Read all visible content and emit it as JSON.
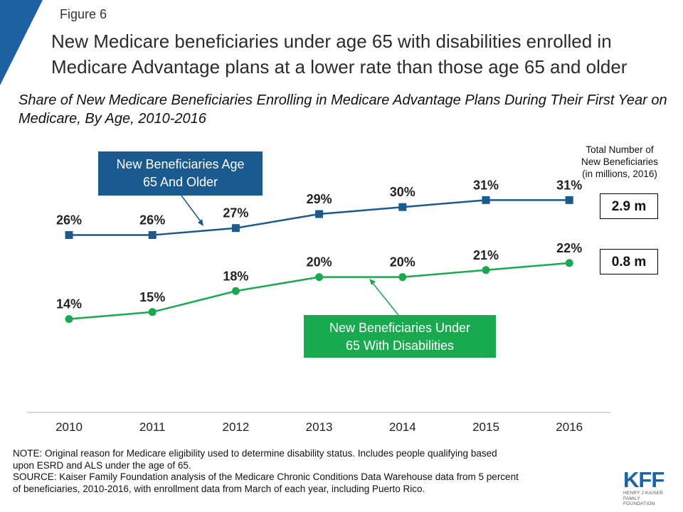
{
  "figure_label": "Figure 6",
  "title": "New Medicare beneficiaries under age 65 with disabilities enrolled in Medicare Advantage plans at a lower rate than those age 65 and older",
  "subtitle": "Share of New Medicare Beneficiaries Enrolling in Medicare Advantage Plans During Their First Year on Medicare, By Age, 2010-2016",
  "total_header": {
    "line1": "Total Number of",
    "line2": "New Beneficiaries",
    "line3": "(in millions, 2016)"
  },
  "colors": {
    "blue": "#1a5a8e",
    "green": "#19aa4f",
    "corner": "#1d63a3"
  },
  "chart_data": {
    "type": "line",
    "x": [
      "2010",
      "2011",
      "2012",
      "2013",
      "2014",
      "2015",
      "2016"
    ],
    "series": [
      {
        "name_line1": "New Beneficiaries Age",
        "name_line2": "65 And  Older",
        "marker": "square",
        "color": "#1a5a8e",
        "values": [
          26,
          26,
          27,
          29,
          30,
          31,
          31
        ],
        "labels": [
          "26%",
          "26%",
          "27%",
          "29%",
          "30%",
          "31%",
          "31%"
        ],
        "total": "2.9 m"
      },
      {
        "name_line1": "New Beneficiaries Under",
        "name_line2": "65 With Disabilities",
        "marker": "circle",
        "color": "#19aa4f",
        "values": [
          14,
          15,
          18,
          20,
          20,
          21,
          22
        ],
        "labels": [
          "14%",
          "15%",
          "18%",
          "20%",
          "20%",
          "21%",
          "22%"
        ],
        "total": "0.8 m"
      }
    ],
    "xlabel": "",
    "ylabel": "",
    "ylim": [
      0,
      40
    ],
    "grid": false,
    "legend": "callout boxes"
  },
  "notes": {
    "line1": "NOTE: Original reason for Medicare eligibility used to determine disability status. Includes  people qualifying based",
    "line2": "upon ESRD and ALS under the age of 65.",
    "line3": "SOURCE: Kaiser Family Foundation analysis of the Medicare Chronic Conditions Data Warehouse data from 5 percent",
    "line4": "of beneficiaries, 2010-2016, with enrollment  data from March of each year, including Puerto Rico."
  },
  "logo": {
    "mark": "KFF",
    "sub1": "HENRY J KAISER",
    "sub2": "FAMILY FOUNDATION"
  }
}
